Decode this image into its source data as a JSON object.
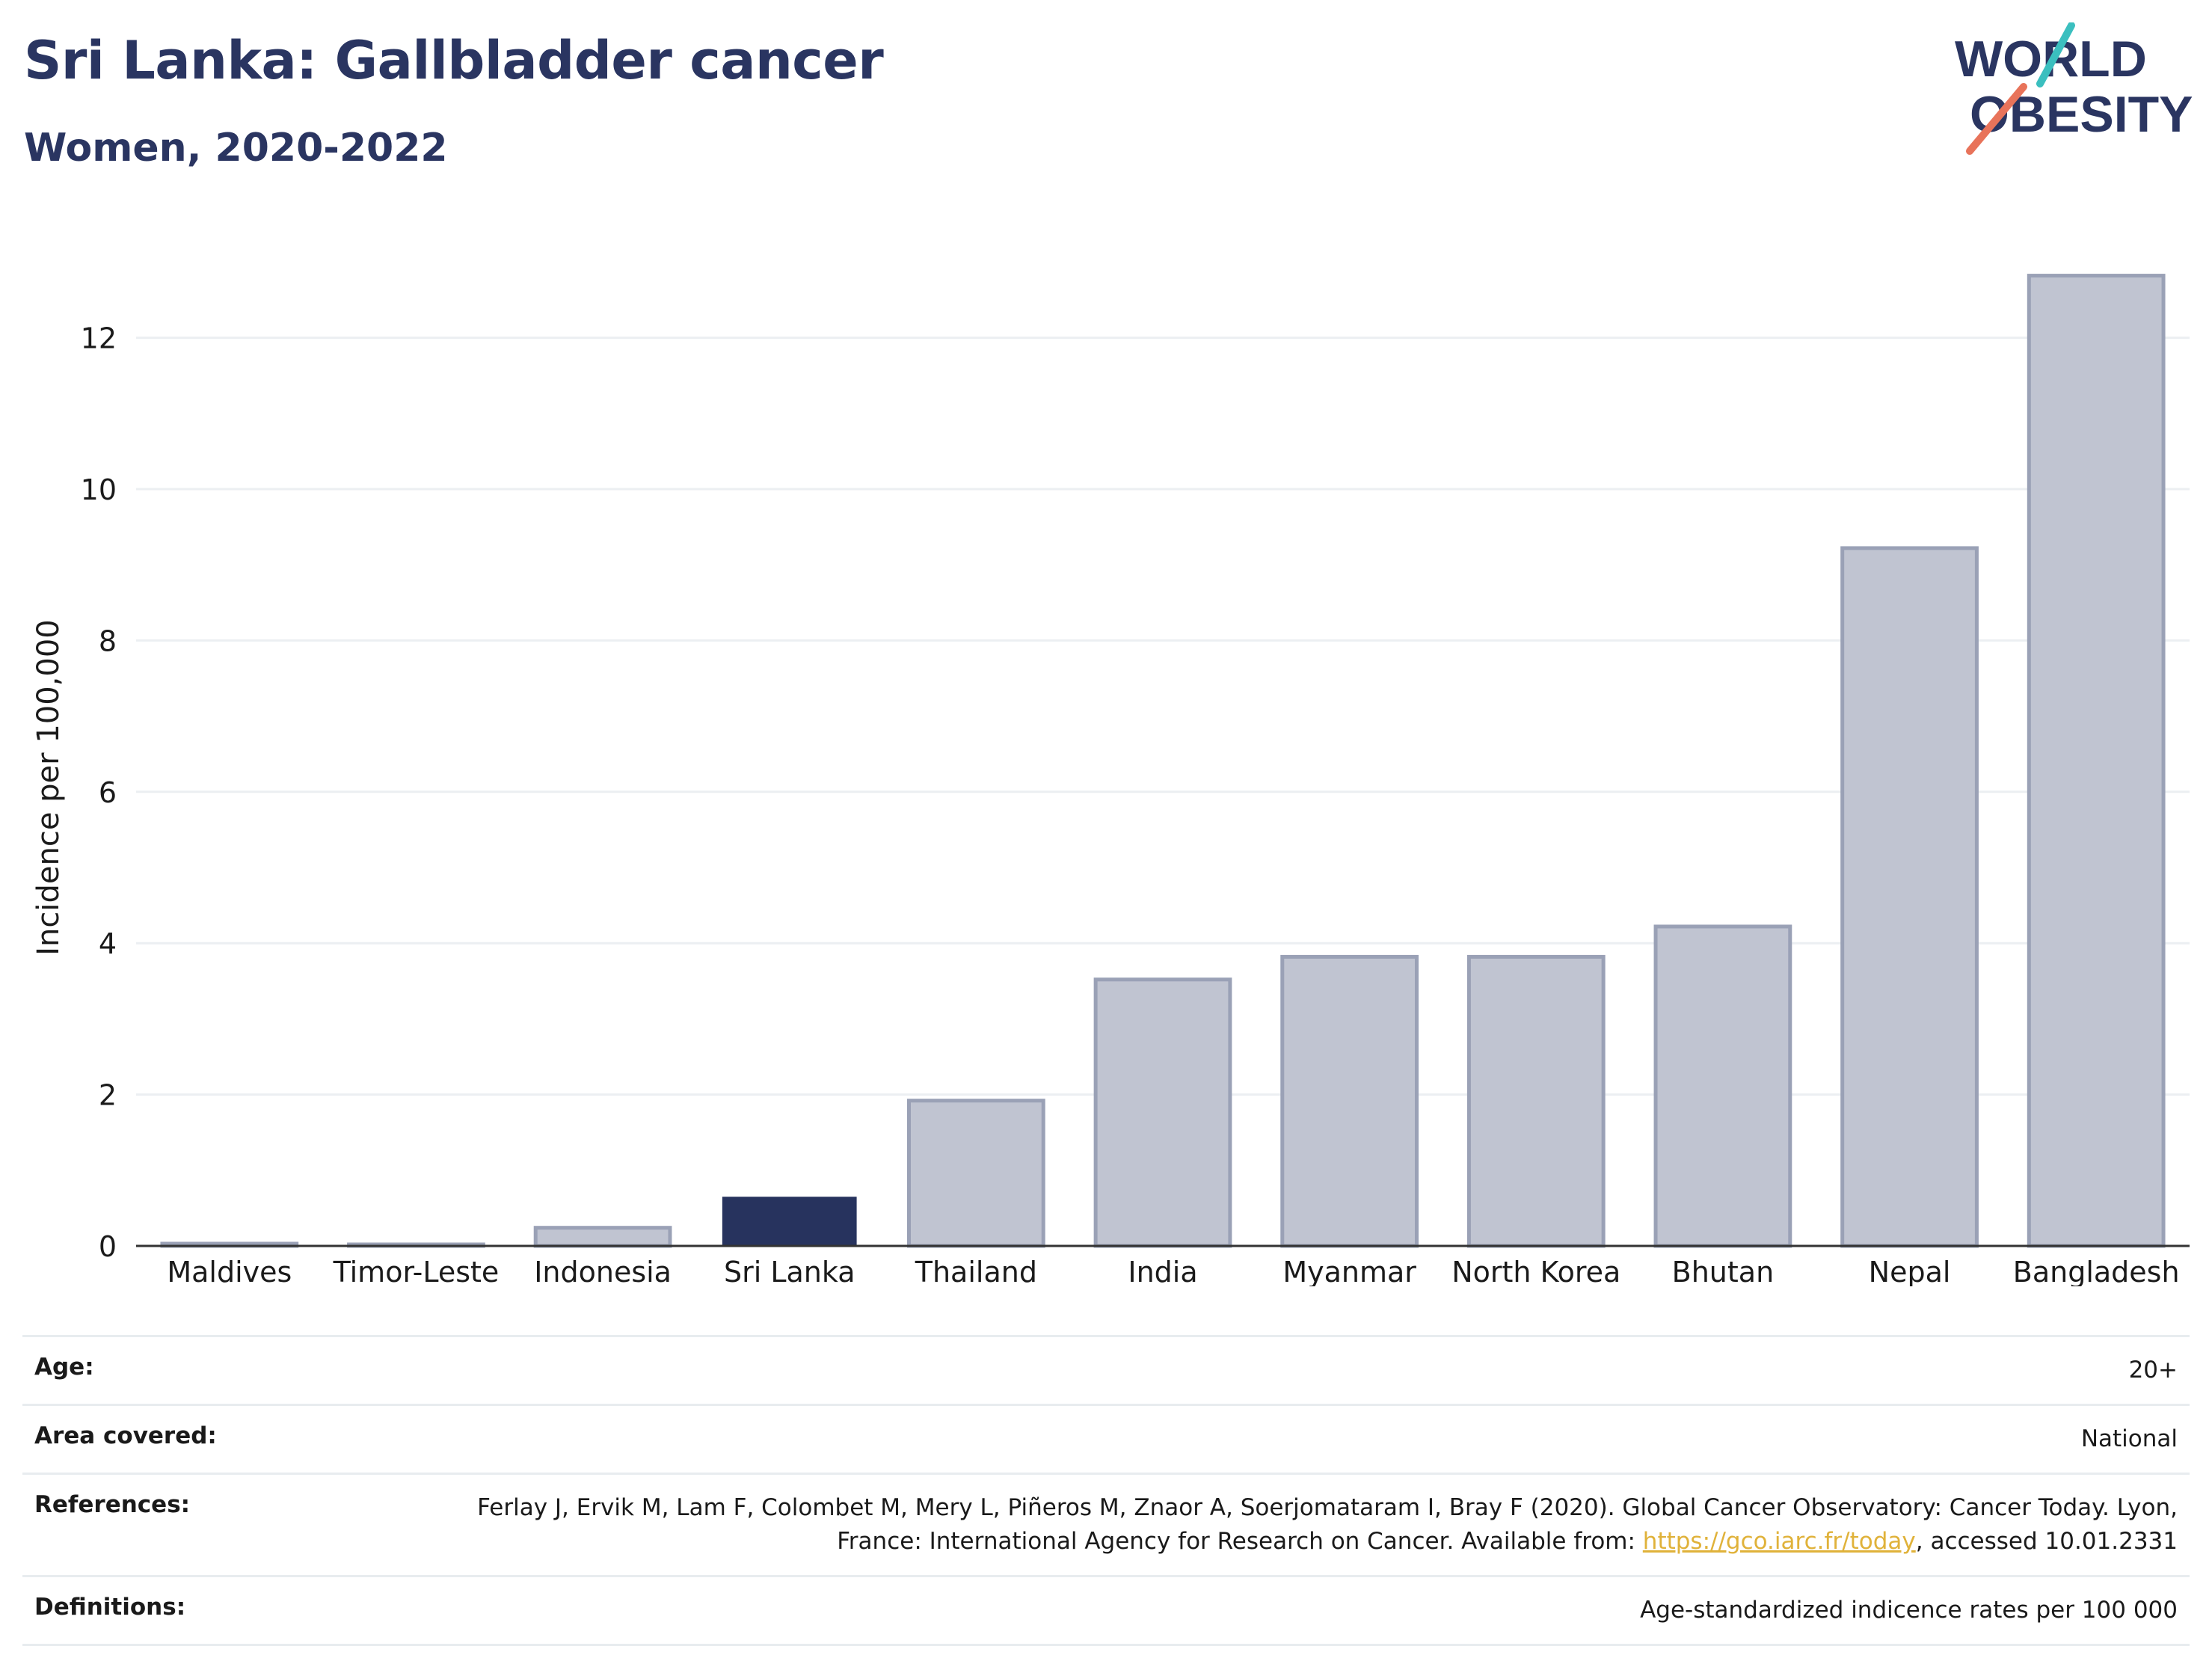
{
  "header": {
    "title": "Sri Lanka: Gallbladder cancer",
    "subtitle": "Women, 2020-2022"
  },
  "logo": {
    "line1": "WORLD",
    "line2": "OBESITY",
    "accent_teal": "#3bbfbf",
    "accent_coral": "#e8735a",
    "text_color": "#2a3561"
  },
  "chart_data": {
    "type": "bar",
    "categories": [
      "Maldives",
      "Timor-Leste",
      "Indonesia",
      "Sri Lanka",
      "Thailand",
      "India",
      "Myanmar",
      "North Korea",
      "Bhutan",
      "Nepal",
      "Bangladesh"
    ],
    "values": [
      0.03,
      0.02,
      0.24,
      0.65,
      1.92,
      3.52,
      3.82,
      3.82,
      4.22,
      9.22,
      12.82
    ],
    "highlight": "Sri Lanka",
    "title": "",
    "xlabel": "",
    "ylabel": "Incidence per 100,000",
    "ylim": [
      0,
      13.3
    ],
    "yticks": [
      0,
      2,
      4,
      6,
      8,
      10,
      12
    ],
    "grid": true,
    "colors": {
      "bar": "#c0c4d1",
      "bar_outline": "#9aa1b6",
      "highlight": "#27335e",
      "grid": "#eceff2",
      "axis": "#333333"
    }
  },
  "meta": {
    "age_label": "Age:",
    "age_value": "20+",
    "area_label": "Area covered:",
    "area_value": "National",
    "references_label": "References:",
    "references_text_1": "Ferlay J, Ervik M, Lam F, Colombet M, Mery L, Piñeros M, Znaor A, Soerjomataram I, Bray F (2020). Global Cancer Observatory: Cancer Today. Lyon, France: International Agency for Research on Cancer. Available from: ",
    "references_link": "https://gco.iarc.fr/today",
    "references_text_2": ", accessed 10.01.2331",
    "definitions_label": "Definitions:",
    "definitions_value": "Age-standardized indicence rates per 100 000"
  }
}
